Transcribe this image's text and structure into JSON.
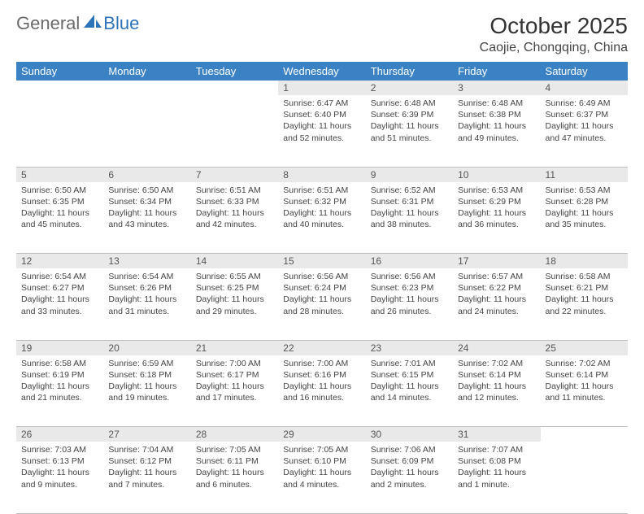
{
  "logo": {
    "general": "General",
    "blue": "Blue"
  },
  "title": "October 2025",
  "location": "Caojie, Chongqing, China",
  "colors": {
    "header_bg": "#3b82c4",
    "header_text": "#ffffff",
    "daynum_bg": "#e9e9e9",
    "border": "#bfbfbf",
    "logo_gray": "#6a6a6a",
    "logo_blue": "#2d73b8",
    "body_bg": "#ffffff"
  },
  "weekdays": [
    "Sunday",
    "Monday",
    "Tuesday",
    "Wednesday",
    "Thursday",
    "Friday",
    "Saturday"
  ],
  "weeks": [
    {
      "days": [
        null,
        null,
        null,
        {
          "n": "1",
          "sunrise": "Sunrise: 6:47 AM",
          "sunset": "Sunset: 6:40 PM",
          "d1": "Daylight: 11 hours",
          "d2": "and 52 minutes."
        },
        {
          "n": "2",
          "sunrise": "Sunrise: 6:48 AM",
          "sunset": "Sunset: 6:39 PM",
          "d1": "Daylight: 11 hours",
          "d2": "and 51 minutes."
        },
        {
          "n": "3",
          "sunrise": "Sunrise: 6:48 AM",
          "sunset": "Sunset: 6:38 PM",
          "d1": "Daylight: 11 hours",
          "d2": "and 49 minutes."
        },
        {
          "n": "4",
          "sunrise": "Sunrise: 6:49 AM",
          "sunset": "Sunset: 6:37 PM",
          "d1": "Daylight: 11 hours",
          "d2": "and 47 minutes."
        }
      ]
    },
    {
      "days": [
        {
          "n": "5",
          "sunrise": "Sunrise: 6:50 AM",
          "sunset": "Sunset: 6:35 PM",
          "d1": "Daylight: 11 hours",
          "d2": "and 45 minutes."
        },
        {
          "n": "6",
          "sunrise": "Sunrise: 6:50 AM",
          "sunset": "Sunset: 6:34 PM",
          "d1": "Daylight: 11 hours",
          "d2": "and 43 minutes."
        },
        {
          "n": "7",
          "sunrise": "Sunrise: 6:51 AM",
          "sunset": "Sunset: 6:33 PM",
          "d1": "Daylight: 11 hours",
          "d2": "and 42 minutes."
        },
        {
          "n": "8",
          "sunrise": "Sunrise: 6:51 AM",
          "sunset": "Sunset: 6:32 PM",
          "d1": "Daylight: 11 hours",
          "d2": "and 40 minutes."
        },
        {
          "n": "9",
          "sunrise": "Sunrise: 6:52 AM",
          "sunset": "Sunset: 6:31 PM",
          "d1": "Daylight: 11 hours",
          "d2": "and 38 minutes."
        },
        {
          "n": "10",
          "sunrise": "Sunrise: 6:53 AM",
          "sunset": "Sunset: 6:29 PM",
          "d1": "Daylight: 11 hours",
          "d2": "and 36 minutes."
        },
        {
          "n": "11",
          "sunrise": "Sunrise: 6:53 AM",
          "sunset": "Sunset: 6:28 PM",
          "d1": "Daylight: 11 hours",
          "d2": "and 35 minutes."
        }
      ]
    },
    {
      "days": [
        {
          "n": "12",
          "sunrise": "Sunrise: 6:54 AM",
          "sunset": "Sunset: 6:27 PM",
          "d1": "Daylight: 11 hours",
          "d2": "and 33 minutes."
        },
        {
          "n": "13",
          "sunrise": "Sunrise: 6:54 AM",
          "sunset": "Sunset: 6:26 PM",
          "d1": "Daylight: 11 hours",
          "d2": "and 31 minutes."
        },
        {
          "n": "14",
          "sunrise": "Sunrise: 6:55 AM",
          "sunset": "Sunset: 6:25 PM",
          "d1": "Daylight: 11 hours",
          "d2": "and 29 minutes."
        },
        {
          "n": "15",
          "sunrise": "Sunrise: 6:56 AM",
          "sunset": "Sunset: 6:24 PM",
          "d1": "Daylight: 11 hours",
          "d2": "and 28 minutes."
        },
        {
          "n": "16",
          "sunrise": "Sunrise: 6:56 AM",
          "sunset": "Sunset: 6:23 PM",
          "d1": "Daylight: 11 hours",
          "d2": "and 26 minutes."
        },
        {
          "n": "17",
          "sunrise": "Sunrise: 6:57 AM",
          "sunset": "Sunset: 6:22 PM",
          "d1": "Daylight: 11 hours",
          "d2": "and 24 minutes."
        },
        {
          "n": "18",
          "sunrise": "Sunrise: 6:58 AM",
          "sunset": "Sunset: 6:21 PM",
          "d1": "Daylight: 11 hours",
          "d2": "and 22 minutes."
        }
      ]
    },
    {
      "days": [
        {
          "n": "19",
          "sunrise": "Sunrise: 6:58 AM",
          "sunset": "Sunset: 6:19 PM",
          "d1": "Daylight: 11 hours",
          "d2": "and 21 minutes."
        },
        {
          "n": "20",
          "sunrise": "Sunrise: 6:59 AM",
          "sunset": "Sunset: 6:18 PM",
          "d1": "Daylight: 11 hours",
          "d2": "and 19 minutes."
        },
        {
          "n": "21",
          "sunrise": "Sunrise: 7:00 AM",
          "sunset": "Sunset: 6:17 PM",
          "d1": "Daylight: 11 hours",
          "d2": "and 17 minutes."
        },
        {
          "n": "22",
          "sunrise": "Sunrise: 7:00 AM",
          "sunset": "Sunset: 6:16 PM",
          "d1": "Daylight: 11 hours",
          "d2": "and 16 minutes."
        },
        {
          "n": "23",
          "sunrise": "Sunrise: 7:01 AM",
          "sunset": "Sunset: 6:15 PM",
          "d1": "Daylight: 11 hours",
          "d2": "and 14 minutes."
        },
        {
          "n": "24",
          "sunrise": "Sunrise: 7:02 AM",
          "sunset": "Sunset: 6:14 PM",
          "d1": "Daylight: 11 hours",
          "d2": "and 12 minutes."
        },
        {
          "n": "25",
          "sunrise": "Sunrise: 7:02 AM",
          "sunset": "Sunset: 6:14 PM",
          "d1": "Daylight: 11 hours",
          "d2": "and 11 minutes."
        }
      ]
    },
    {
      "days": [
        {
          "n": "26",
          "sunrise": "Sunrise: 7:03 AM",
          "sunset": "Sunset: 6:13 PM",
          "d1": "Daylight: 11 hours",
          "d2": "and 9 minutes."
        },
        {
          "n": "27",
          "sunrise": "Sunrise: 7:04 AM",
          "sunset": "Sunset: 6:12 PM",
          "d1": "Daylight: 11 hours",
          "d2": "and 7 minutes."
        },
        {
          "n": "28",
          "sunrise": "Sunrise: 7:05 AM",
          "sunset": "Sunset: 6:11 PM",
          "d1": "Daylight: 11 hours",
          "d2": "and 6 minutes."
        },
        {
          "n": "29",
          "sunrise": "Sunrise: 7:05 AM",
          "sunset": "Sunset: 6:10 PM",
          "d1": "Daylight: 11 hours",
          "d2": "and 4 minutes."
        },
        {
          "n": "30",
          "sunrise": "Sunrise: 7:06 AM",
          "sunset": "Sunset: 6:09 PM",
          "d1": "Daylight: 11 hours",
          "d2": "and 2 minutes."
        },
        {
          "n": "31",
          "sunrise": "Sunrise: 7:07 AM",
          "sunset": "Sunset: 6:08 PM",
          "d1": "Daylight: 11 hours",
          "d2": "and 1 minute."
        },
        null
      ]
    }
  ]
}
